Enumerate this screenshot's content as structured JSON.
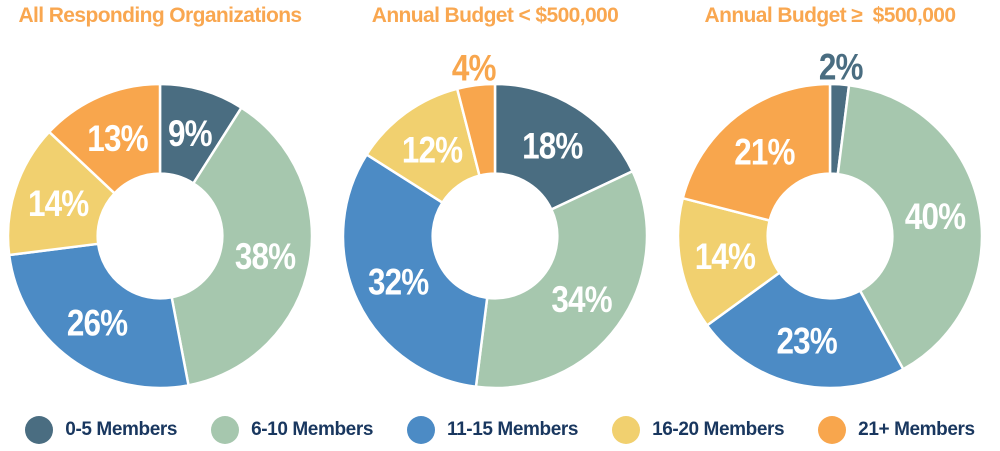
{
  "page": {
    "background_color": "#FFFFFF",
    "title_color": "#F9A750",
    "legend_text_color": "#19375F",
    "inside_label_color": "#FFFFFF"
  },
  "chart_data": [
    {
      "type": "pie",
      "subtype": "donut",
      "title": "All Responding Organizations",
      "categories": [
        "0-5 Members",
        "6-10 Members",
        "11-15 Members",
        "16-20 Members",
        "21+ Members"
      ],
      "values": [
        9,
        38,
        26,
        14,
        13
      ],
      "labels": [
        "9%",
        "38%",
        "26%",
        "14%",
        "13%"
      ],
      "colors": [
        "#4A6D81",
        "#A6C7AE",
        "#4C8BC5",
        "#F1D06F",
        "#F8A64D"
      ],
      "unit": "percent",
      "start_angle_deg": 0,
      "direction": "clockwise",
      "inner_radius_ratio": 0.41,
      "legend_position": "bottom"
    },
    {
      "type": "pie",
      "subtype": "donut",
      "title": "Annual Budget < $500,000",
      "categories": [
        "0-5 Members",
        "6-10 Members",
        "11-15 Members",
        "16-20 Members",
        "21+ Members"
      ],
      "values": [
        18,
        34,
        32,
        12,
        4
      ],
      "labels": [
        "18%",
        "34%",
        "32%",
        "12%",
        "4%"
      ],
      "colors": [
        "#4A6D81",
        "#A6C7AE",
        "#4C8BC5",
        "#F1D06F",
        "#F8A64D"
      ],
      "unit": "percent",
      "start_angle_deg": 0,
      "direction": "clockwise",
      "inner_radius_ratio": 0.41,
      "legend_position": "bottom"
    },
    {
      "type": "pie",
      "subtype": "donut",
      "title": "Annual Budget ≥  $500,000",
      "categories": [
        "0-5 Members",
        "6-10 Members",
        "11-15 Members",
        "16-20 Members",
        "21+ Members"
      ],
      "values": [
        2,
        40,
        23,
        14,
        21
      ],
      "labels": [
        "2%",
        "40%",
        "23%",
        "14%",
        "21%"
      ],
      "colors": [
        "#4A6D81",
        "#A6C7AE",
        "#4C8BC5",
        "#F1D06F",
        "#F8A64D"
      ],
      "unit": "percent",
      "start_angle_deg": 0,
      "direction": "clockwise",
      "inner_radius_ratio": 0.41,
      "legend_position": "bottom"
    }
  ],
  "legend": {
    "items": [
      {
        "label": "0-5 Members",
        "color": "#4A6D81"
      },
      {
        "label": "6-10 Members",
        "color": "#A6C7AE"
      },
      {
        "label": "11-15 Members",
        "color": "#4C8BC5"
      },
      {
        "label": "16-20 Members",
        "color": "#F1D06F"
      },
      {
        "label": "21+ Members",
        "color": "#F8A64D"
      }
    ]
  }
}
